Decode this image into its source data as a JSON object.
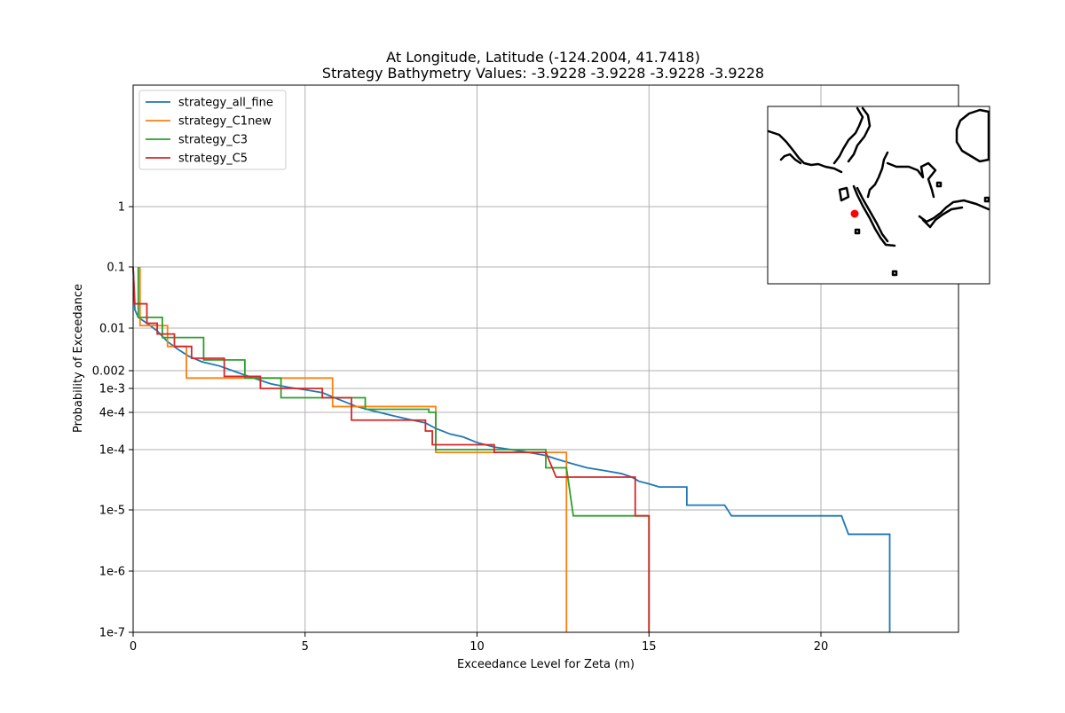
{
  "chart_data": {
    "type": "line",
    "title": "At Longitude, Latitude (-124.2004,  41.7418)",
    "subtitle": "Strategy Bathymetry Values:   -3.9228   -3.9228   -3.9228   -3.9228",
    "xlabel": "Exceedance Level for Zeta (m)",
    "ylabel": "Probability of Exceedance",
    "xlim": [
      0,
      24
    ],
    "y_scale": "custom-log",
    "grid": true,
    "legend_position": "top-left",
    "x_ticks": [
      0,
      5,
      10,
      15,
      20
    ],
    "y_ticks": [
      {
        "value": 1e-07,
        "label": "1e-7"
      },
      {
        "value": 1e-06,
        "label": "1e-6"
      },
      {
        "value": 1e-05,
        "label": "1e-5"
      },
      {
        "value": 0.0001,
        "label": "1e-4"
      },
      {
        "value": 0.0004,
        "label": "4e-4"
      },
      {
        "value": 0.001,
        "label": "1e-3"
      },
      {
        "value": 0.002,
        "label": "0.002"
      },
      {
        "value": 0.01,
        "label": "0.01"
      },
      {
        "value": 0.1,
        "label": "0.1"
      },
      {
        "value": 1,
        "label": "1"
      }
    ],
    "series": [
      {
        "name": "strategy_all_fine",
        "color": "#1f77b4",
        "points": [
          [
            0,
            0.1
          ],
          [
            0.05,
            0.02
          ],
          [
            0.15,
            0.015
          ],
          [
            0.4,
            0.012
          ],
          [
            0.7,
            0.009
          ],
          [
            1.0,
            0.006
          ],
          [
            1.3,
            0.0045
          ],
          [
            1.6,
            0.0035
          ],
          [
            2.0,
            0.0028
          ],
          [
            2.5,
            0.0024
          ],
          [
            3.0,
            0.0019
          ],
          [
            3.5,
            0.0015
          ],
          [
            4.0,
            0.0012
          ],
          [
            4.5,
            0.00105
          ],
          [
            5.0,
            0.00095
          ],
          [
            5.5,
            0.00085
          ],
          [
            6.0,
            0.00065
          ],
          [
            6.5,
            0.0005
          ],
          [
            7.0,
            0.00042
          ],
          [
            7.5,
            0.00036
          ],
          [
            8.0,
            0.00031
          ],
          [
            8.5,
            0.00027
          ],
          [
            8.8,
            0.00022
          ],
          [
            9.2,
            0.00018
          ],
          [
            9.6,
            0.00016
          ],
          [
            10.0,
            0.00013
          ],
          [
            10.5,
            0.00011
          ],
          [
            11.0,
            0.0001
          ],
          [
            11.5,
            9e-05
          ],
          [
            12.0,
            8e-05
          ],
          [
            12.3,
            7e-05
          ],
          [
            12.7,
            6e-05
          ],
          [
            13.2,
            5e-05
          ],
          [
            13.7,
            4.5e-05
          ],
          [
            14.2,
            4e-05
          ],
          [
            14.5,
            3.5e-05
          ],
          [
            14.7,
            3e-05
          ],
          [
            15.0,
            2.7e-05
          ],
          [
            15.3,
            2.4e-05
          ],
          [
            16.1,
            2.4e-05
          ],
          [
            16.1,
            1.2e-05
          ],
          [
            17.2,
            1.2e-05
          ],
          [
            17.4,
            8e-06
          ],
          [
            20.6,
            8e-06
          ],
          [
            20.8,
            4e-06
          ],
          [
            22.0,
            4e-06
          ],
          [
            22.0,
            1e-07
          ]
        ]
      },
      {
        "name": "strategy_C1new",
        "color": "#ff7f0e",
        "points": [
          [
            0.2,
            0.1
          ],
          [
            0.2,
            0.011
          ],
          [
            1.0,
            0.011
          ],
          [
            1.0,
            0.005
          ],
          [
            1.55,
            0.005
          ],
          [
            1.55,
            0.0015
          ],
          [
            5.8,
            0.0015
          ],
          [
            5.8,
            0.0005
          ],
          [
            8.8,
            0.0005
          ],
          [
            8.8,
            9e-05
          ],
          [
            12.6,
            9e-05
          ],
          [
            12.6,
            1e-07
          ]
        ]
      },
      {
        "name": "strategy_C3",
        "color": "#2ca02c",
        "points": [
          [
            0.15,
            0.1
          ],
          [
            0.15,
            0.015
          ],
          [
            0.85,
            0.015
          ],
          [
            0.85,
            0.007
          ],
          [
            2.05,
            0.007
          ],
          [
            2.05,
            0.003
          ],
          [
            3.25,
            0.003
          ],
          [
            3.25,
            0.0015
          ],
          [
            4.3,
            0.0015
          ],
          [
            4.3,
            0.0007
          ],
          [
            6.75,
            0.0007
          ],
          [
            6.75,
            0.00045
          ],
          [
            8.6,
            0.00045
          ],
          [
            8.6,
            0.0004
          ],
          [
            8.8,
            0.0004
          ],
          [
            8.8,
            0.0001
          ],
          [
            12.0,
            0.0001
          ],
          [
            12.0,
            5e-05
          ],
          [
            12.6,
            5e-05
          ],
          [
            12.8,
            8e-06
          ],
          [
            15.0,
            8e-06
          ],
          [
            15.0,
            1e-07
          ]
        ]
      },
      {
        "name": "strategy_C5",
        "color": "#d62728",
        "points": [
          [
            0,
            0.1
          ],
          [
            0.05,
            0.025
          ],
          [
            0.4,
            0.025
          ],
          [
            0.4,
            0.012
          ],
          [
            0.7,
            0.012
          ],
          [
            0.7,
            0.008
          ],
          [
            1.2,
            0.008
          ],
          [
            1.2,
            0.005
          ],
          [
            1.7,
            0.005
          ],
          [
            1.7,
            0.0032
          ],
          [
            2.65,
            0.0032
          ],
          [
            2.65,
            0.0016
          ],
          [
            3.7,
            0.0016
          ],
          [
            3.7,
            0.001
          ],
          [
            5.5,
            0.001
          ],
          [
            5.5,
            0.0007
          ],
          [
            6.35,
            0.0007
          ],
          [
            6.35,
            0.0003
          ],
          [
            8.5,
            0.0003
          ],
          [
            8.5,
            0.0002
          ],
          [
            8.7,
            0.0002
          ],
          [
            8.7,
            0.00012
          ],
          [
            10.5,
            0.00012
          ],
          [
            10.5,
            9e-05
          ],
          [
            12.0,
            9e-05
          ],
          [
            12.3,
            3.5e-05
          ],
          [
            14.6,
            3.5e-05
          ],
          [
            14.6,
            8e-06
          ],
          [
            15.0,
            8e-06
          ],
          [
            15.0,
            1e-07
          ]
        ]
      }
    ]
  },
  "inset_map": {
    "marker_color": "#ff0000"
  }
}
